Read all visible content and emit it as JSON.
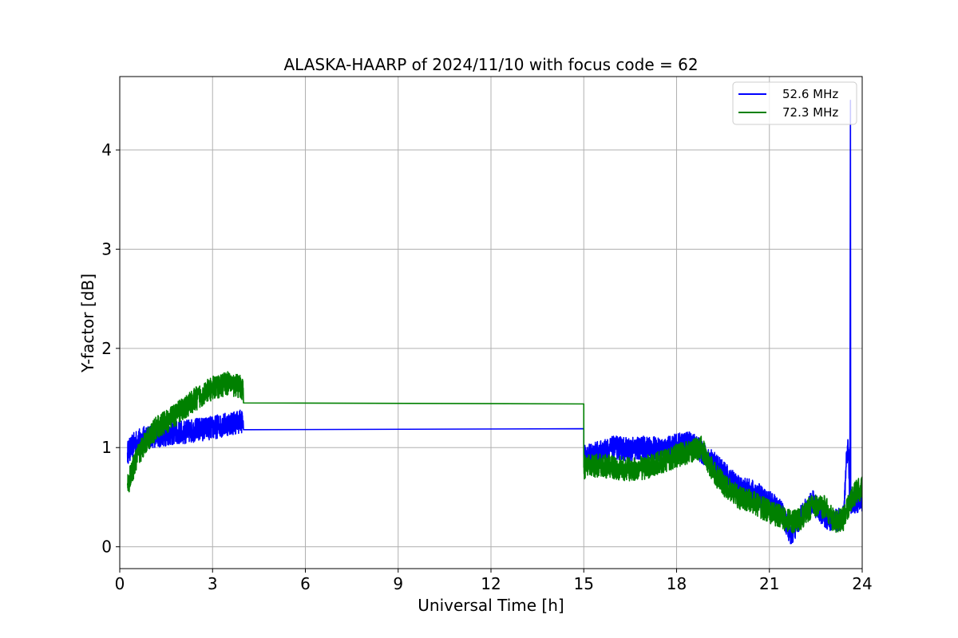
{
  "chart_data": {
    "type": "line",
    "title": "ALASKA-HAARP of 2024/11/10 with focus code = 62",
    "xlabel": "Universal Time [h]",
    "ylabel": "Y-factor [dB]",
    "xlim": [
      0,
      24
    ],
    "ylim": [
      -0.22,
      4.74
    ],
    "xticks": [
      0,
      3,
      6,
      9,
      12,
      15,
      18,
      21,
      24
    ],
    "xtick_labels": [
      "0",
      "3",
      "6",
      "9",
      "12",
      "15",
      "18",
      "21",
      "24"
    ],
    "yticks": [
      0,
      1,
      2,
      3,
      4
    ],
    "ytick_labels": [
      "0",
      "1",
      "2",
      "3",
      "4"
    ],
    "grid": true,
    "legend_position": "top-right",
    "series": [
      {
        "name": "52.6 MHz",
        "color": "#0000ff",
        "noisy": true,
        "x": [
          0.25,
          0.5,
          0.8,
          1.2,
          1.6,
          2.0,
          2.5,
          3.0,
          3.5,
          3.99,
          4.0,
          15.0,
          15.0,
          15.5,
          16.0,
          16.5,
          17.0,
          17.5,
          18.0,
          18.5,
          19.0,
          19.5,
          20.0,
          20.5,
          21.0,
          21.4,
          21.7,
          22.0,
          22.4,
          22.8,
          23.1,
          23.4,
          23.5,
          23.55,
          23.6,
          23.62,
          23.63,
          23.65,
          23.7,
          24.0
        ],
        "y": [
          0.95,
          1.05,
          1.1,
          1.12,
          1.14,
          1.15,
          1.18,
          1.2,
          1.24,
          1.27,
          1.18,
          1.19,
          0.9,
          0.95,
          1.0,
          0.98,
          1.0,
          0.98,
          1.02,
          1.05,
          0.9,
          0.75,
          0.6,
          0.55,
          0.45,
          0.35,
          0.12,
          0.3,
          0.45,
          0.3,
          0.25,
          0.3,
          0.95,
          1.0,
          0.45,
          4.5,
          0.4,
          0.45,
          0.45,
          0.48
        ]
      },
      {
        "name": "72.3 MHz",
        "color": "#008000",
        "noisy": true,
        "x": [
          0.25,
          0.5,
          0.8,
          1.2,
          1.6,
          2.0,
          2.5,
          3.0,
          3.5,
          3.99,
          4.0,
          15.0,
          15.0,
          15.5,
          16.0,
          16.5,
          17.0,
          17.5,
          18.0,
          18.5,
          18.8,
          19.2,
          19.6,
          20.0,
          20.5,
          21.0,
          21.4,
          21.7,
          22.0,
          22.4,
          22.8,
          23.1,
          23.4,
          23.6,
          23.8,
          24.0
        ],
        "y": [
          0.62,
          0.85,
          1.05,
          1.2,
          1.28,
          1.38,
          1.5,
          1.6,
          1.65,
          1.6,
          1.45,
          1.44,
          0.8,
          0.82,
          0.8,
          0.78,
          0.8,
          0.85,
          0.92,
          0.97,
          1.0,
          0.75,
          0.6,
          0.5,
          0.45,
          0.35,
          0.3,
          0.25,
          0.28,
          0.42,
          0.4,
          0.25,
          0.28,
          0.45,
          0.55,
          0.6
        ]
      }
    ]
  }
}
